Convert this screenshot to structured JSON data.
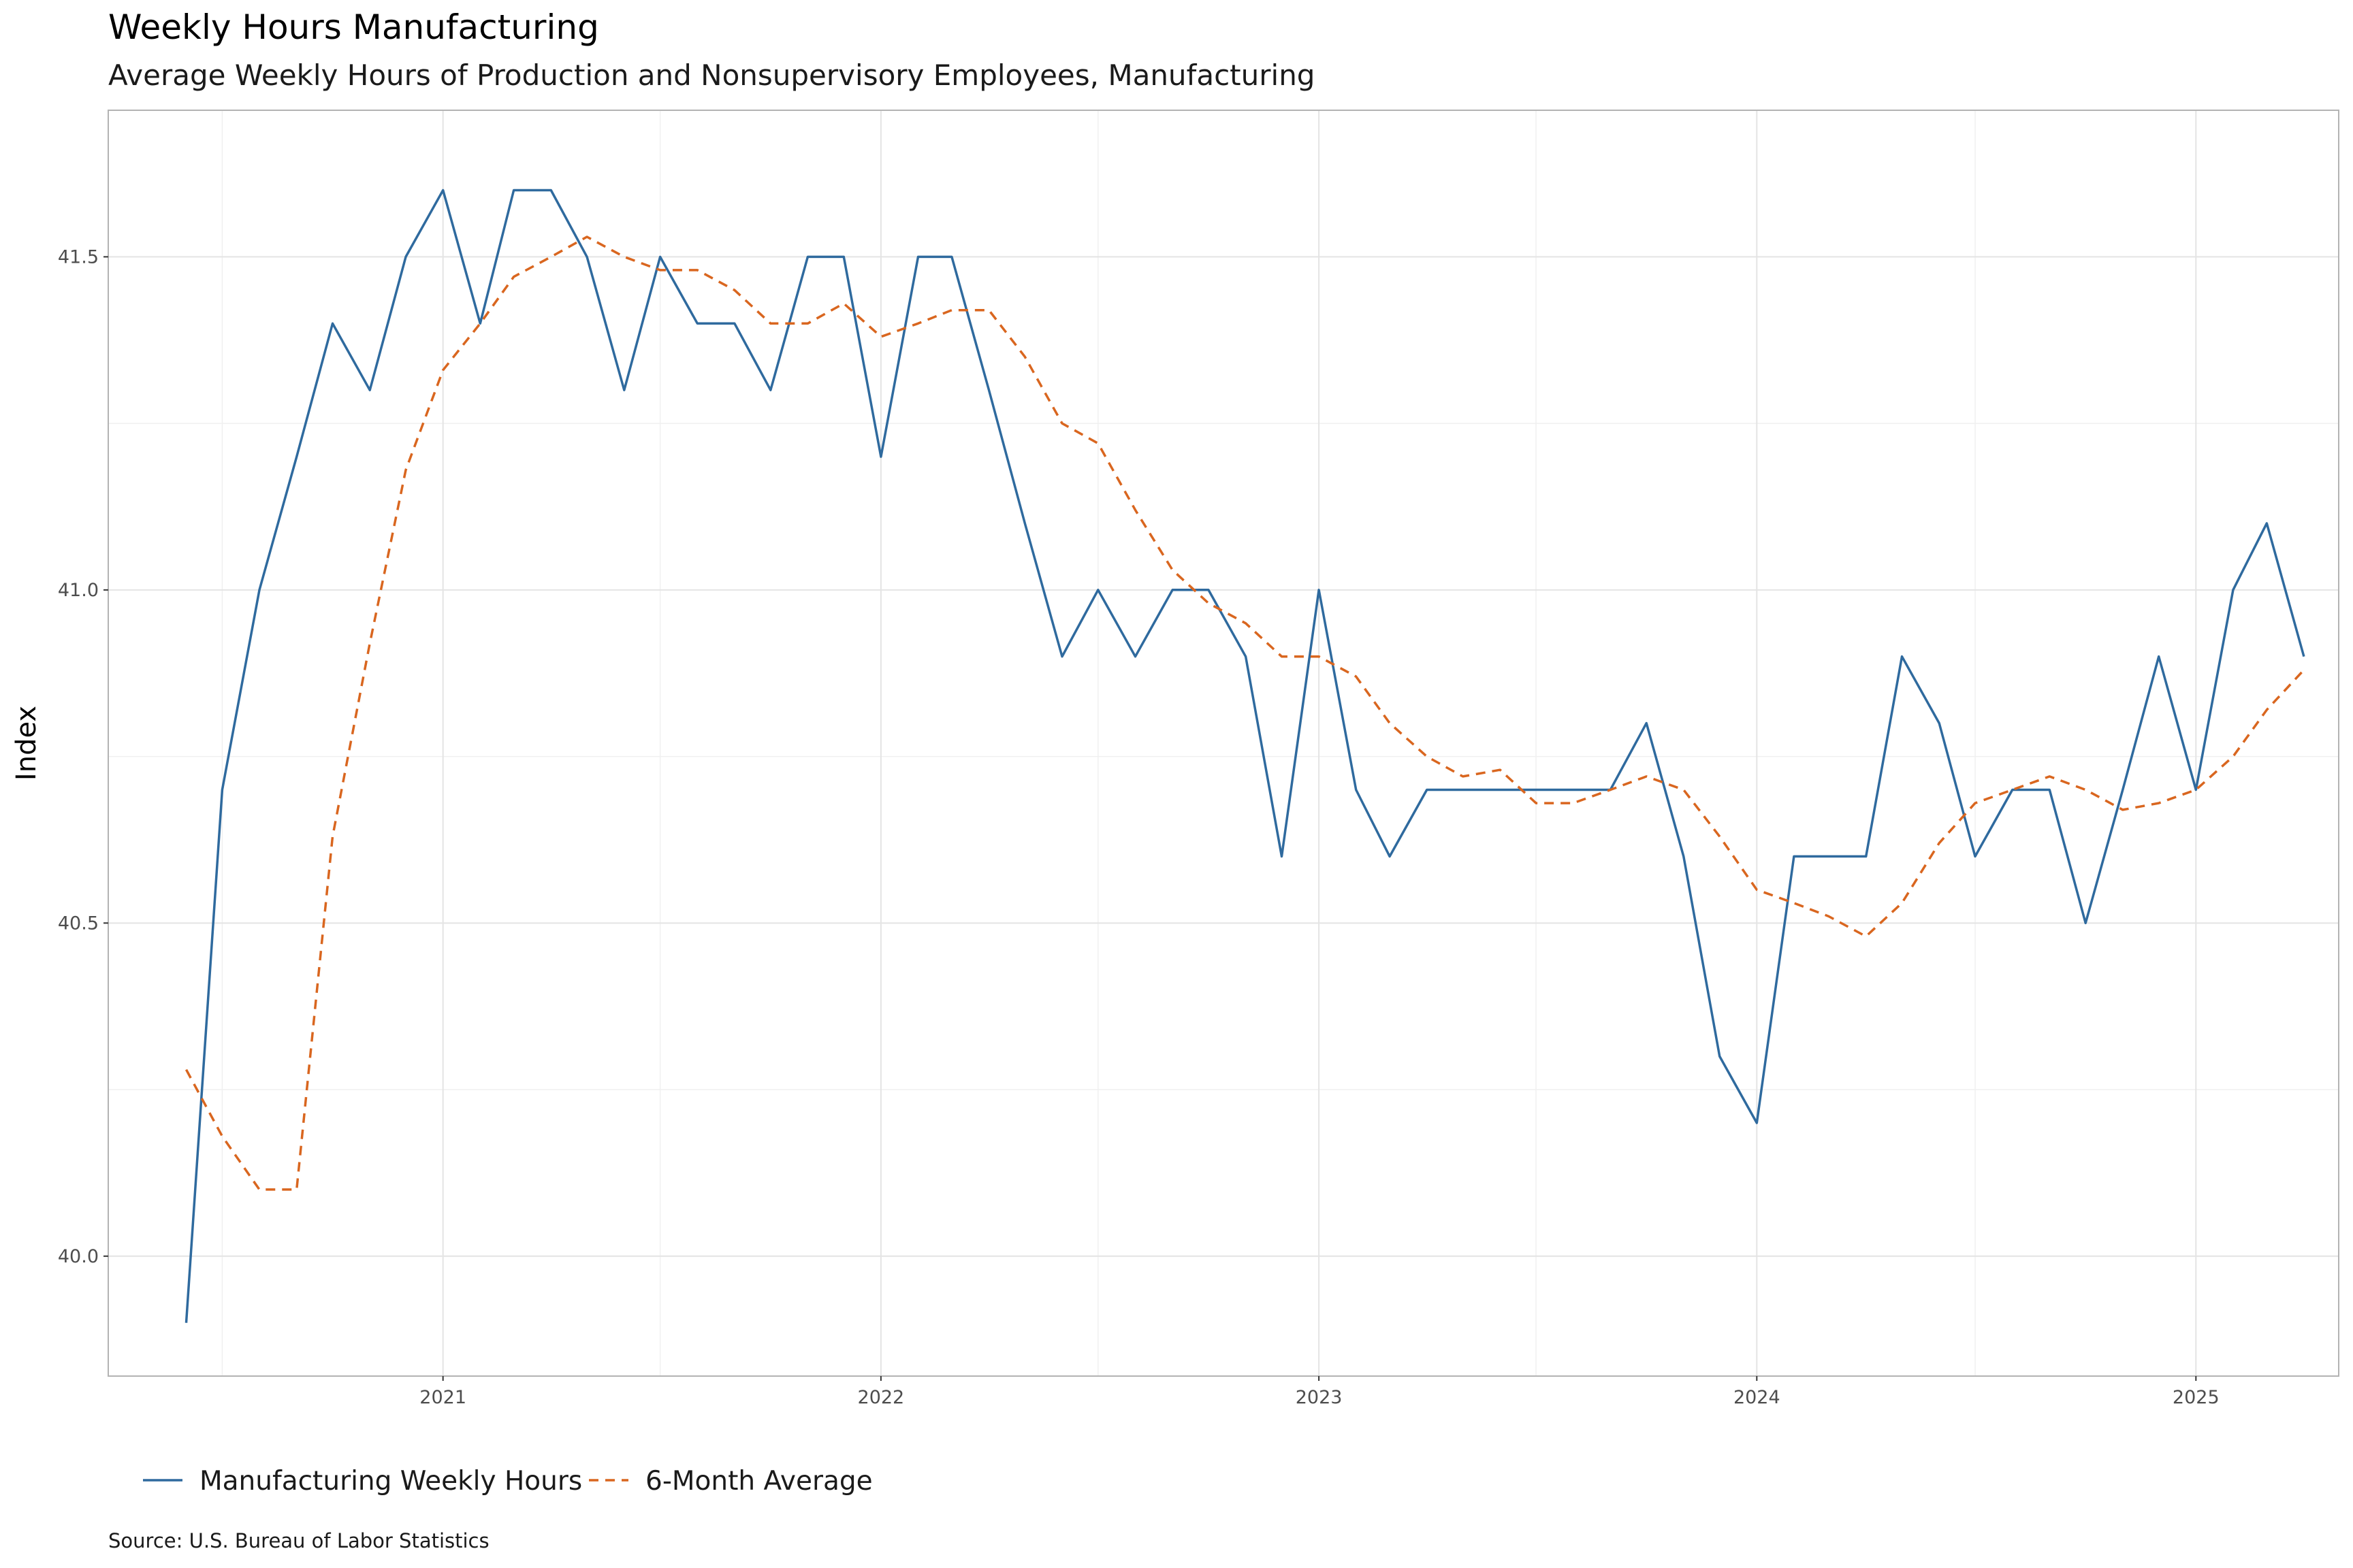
{
  "chart_data": {
    "type": "line",
    "title": "Weekly Hours Manufacturing",
    "subtitle": "Average Weekly Hours of Production and Nonsupervisory Employees, Manufacturing",
    "xlabel": "",
    "ylabel": "Index",
    "caption": "Source: U.S. Bureau of Labor Statistics",
    "legend_position": "bottom-left",
    "grid": true,
    "x_ticks": [
      "2021",
      "2022",
      "2023",
      "2024",
      "2025"
    ],
    "y_ticks": [
      "40.0",
      "40.5",
      "41.0",
      "41.5"
    ],
    "xlim": [
      "2020-03-28",
      "2025-04-30"
    ],
    "ylim": [
      39.82,
      41.72
    ],
    "x": [
      "2020-06",
      "2020-07",
      "2020-08",
      "2020-09",
      "2020-10",
      "2020-11",
      "2020-12",
      "2021-01",
      "2021-02",
      "2021-03",
      "2021-04",
      "2021-05",
      "2021-06",
      "2021-07",
      "2021-08",
      "2021-09",
      "2021-10",
      "2021-11",
      "2021-12",
      "2022-01",
      "2022-02",
      "2022-03",
      "2022-04",
      "2022-05",
      "2022-06",
      "2022-07",
      "2022-08",
      "2022-09",
      "2022-10",
      "2022-11",
      "2022-12",
      "2023-01",
      "2023-02",
      "2023-03",
      "2023-04",
      "2023-05",
      "2023-06",
      "2023-07",
      "2023-08",
      "2023-09",
      "2023-10",
      "2023-11",
      "2023-12",
      "2024-01",
      "2024-02",
      "2024-03",
      "2024-04",
      "2024-05",
      "2024-06",
      "2024-07",
      "2024-08",
      "2024-09",
      "2024-10",
      "2024-11",
      "2024-12",
      "2025-01",
      "2025-02",
      "2025-03",
      "2025-04"
    ],
    "series": [
      {
        "name": "Manufacturing Weekly Hours",
        "color": "#2f6a9e",
        "dash": "solid",
        "values": [
          39.9,
          40.7,
          41.0,
          41.2,
          41.4,
          41.3,
          41.5,
          41.6,
          41.4,
          41.6,
          41.6,
          41.5,
          41.3,
          41.5,
          41.4,
          41.4,
          41.3,
          41.5,
          41.5,
          41.2,
          41.5,
          41.5,
          41.3,
          41.1,
          40.9,
          41.0,
          40.9,
          41.0,
          41.0,
          40.9,
          40.6,
          41.0,
          40.7,
          40.6,
          40.7,
          40.7,
          40.7,
          40.7,
          40.7,
          40.7,
          40.8,
          40.6,
          40.3,
          40.2,
          40.6,
          40.6,
          40.6,
          40.9,
          40.8,
          40.6,
          40.7,
          40.7,
          40.5,
          40.7,
          40.9,
          40.7,
          41.0,
          41.1,
          40.9
        ]
      },
      {
        "name": "6-Month Average",
        "color": "#d9661f",
        "dash": "dashed",
        "values": [
          40.28,
          40.18,
          40.1,
          40.1,
          40.63,
          40.92,
          41.18,
          41.33,
          41.4,
          41.47,
          41.5,
          41.53,
          41.5,
          41.48,
          41.48,
          41.45,
          41.4,
          41.4,
          41.43,
          41.38,
          41.4,
          41.42,
          41.42,
          41.35,
          41.25,
          41.22,
          41.12,
          41.03,
          40.98,
          40.95,
          40.9,
          40.9,
          40.87,
          40.8,
          40.75,
          40.72,
          40.73,
          40.68,
          40.68,
          40.7,
          40.72,
          40.7,
          40.63,
          40.55,
          40.53,
          40.51,
          40.48,
          40.53,
          40.62,
          40.68,
          40.7,
          40.72,
          40.7,
          40.67,
          40.68,
          40.7,
          40.75,
          40.82,
          40.88
        ]
      }
    ]
  }
}
